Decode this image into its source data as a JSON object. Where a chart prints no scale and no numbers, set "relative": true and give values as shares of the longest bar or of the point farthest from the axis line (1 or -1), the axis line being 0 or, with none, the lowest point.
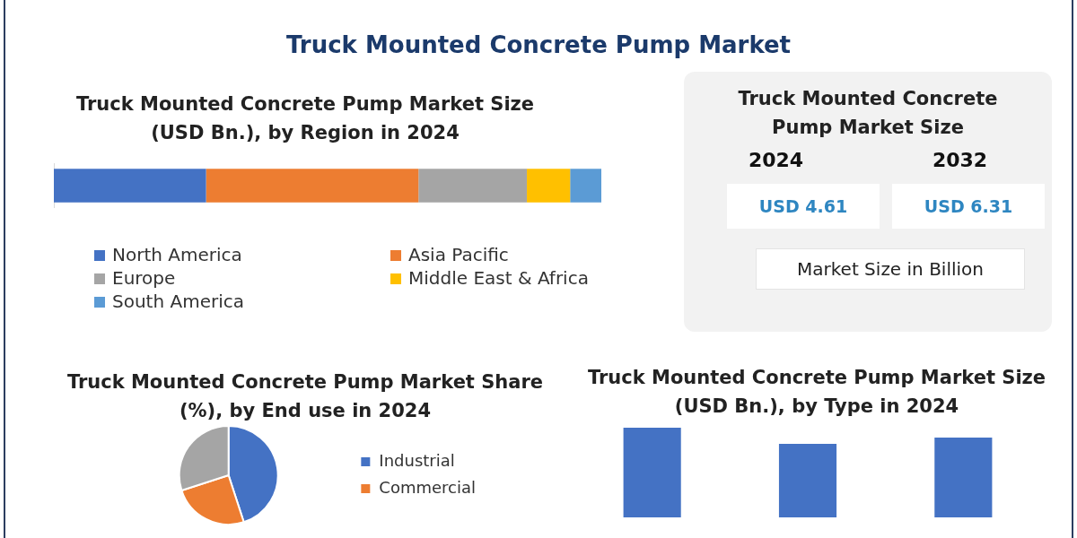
{
  "chart_data": [
    {
      "type": "other",
      "title": "Truck Mounted Concrete Pump Market"
    },
    {
      "type": "bar",
      "title": "Truck Mounted Concrete Pump Market Size (USD Bn.), by Region in 2024",
      "orientation": "horizontal",
      "stacked": true,
      "relative": true,
      "legend": "bottom",
      "categories": [
        null
      ],
      "series": [
        {
          "name": "North America",
          "color": "#4472c4",
          "values": [
            0.278
          ]
        },
        {
          "name": "Asia Pacific",
          "color": "#ed7d31",
          "values": [
            0.388
          ]
        },
        {
          "name": "Europe",
          "color": "#a5a5a5",
          "values": [
            0.198
          ]
        },
        {
          "name": "Middle East & Africa",
          "color": "#ffc000",
          "values": [
            0.079
          ]
        },
        {
          "name": "South America",
          "color": "#5b9bd5",
          "values": [
            0.057
          ]
        }
      ]
    },
    {
      "type": "other",
      "title": "Truck Mounted Concrete Pump Market Size",
      "categories": [
        "2024",
        "2032"
      ],
      "values": [
        4.61,
        6.31
      ],
      "value_labels": [
        "USD 4.61",
        "USD 6.31"
      ],
      "annotations": [
        "Market Size in Billion"
      ]
    },
    {
      "type": "pie",
      "title": "Truck Mounted Concrete Pump Market Share (%), by End use in 2024",
      "categories": [
        "Industrial",
        "Commercial",
        null
      ],
      "values": [
        45,
        25,
        30
      ],
      "colors": [
        "#4472c4",
        "#ed7d31",
        "#a5a5a5"
      ],
      "legend": "right"
    },
    {
      "type": "bar",
      "title": "Truck Mounted Concrete Pump Market Size (USD Bn.), by Type in 2024",
      "relative": true,
      "categories": [
        null,
        null,
        null
      ],
      "values": [
        1,
        0.82,
        0.89
      ],
      "color": "#4472c4"
    }
  ]
}
